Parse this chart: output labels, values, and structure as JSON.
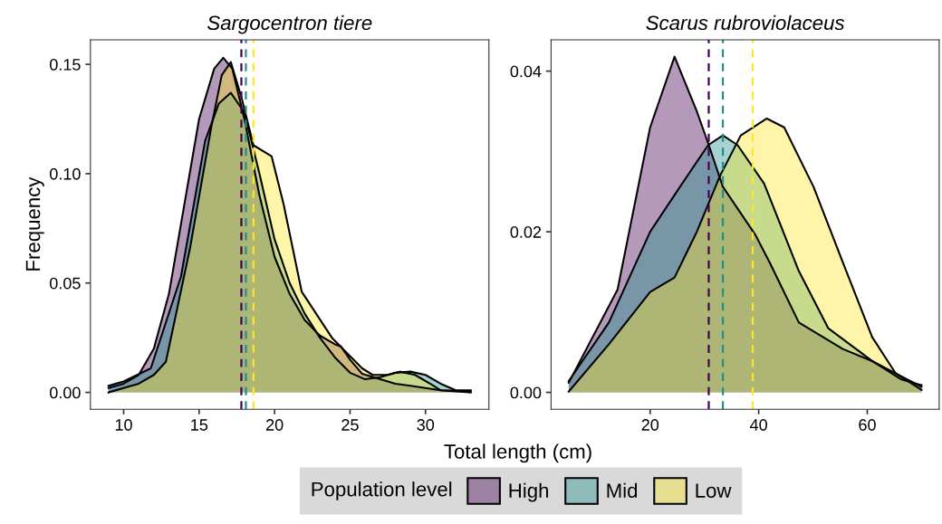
{
  "chart_data": [
    {
      "type": "area",
      "title": "Sargocentron tiere",
      "ylabel": "Frequency",
      "xlabel": "Total length (cm)",
      "legend_title": "Population level",
      "legend": "bottom",
      "grid": false,
      "xlim": [
        7.8,
        34.2
      ],
      "xticks": [
        10,
        15,
        20,
        25,
        30
      ],
      "ylim": [
        -0.0077,
        0.1612
      ],
      "yticks": [
        {
          "value": 0,
          "label": "0.00"
        },
        {
          "value": 0.05,
          "label": "0.05"
        },
        {
          "value": 0.1,
          "label": "0.10"
        },
        {
          "value": 0.15,
          "label": "0.15"
        }
      ],
      "series": [
        {
          "name": "High",
          "color": "#440154",
          "x": [
            9,
            10,
            11,
            12,
            13,
            14,
            15,
            16,
            16.6,
            17.2,
            18,
            19,
            20,
            21,
            22,
            23,
            24,
            24.4,
            25,
            25.8,
            27,
            28,
            29,
            30,
            31,
            33
          ],
          "values": [
            0.002,
            0.004,
            0.008,
            0.02,
            0.045,
            0.085,
            0.125,
            0.148,
            0.153,
            0.148,
            0.125,
            0.09,
            0.062,
            0.045,
            0.033,
            0.026,
            0.022,
            0.021,
            0.015,
            0.0085,
            0.006,
            0.004,
            0.003,
            0.002,
            0.001,
            0.0005
          ]
        },
        {
          "name": "Mid",
          "color": "#21908c",
          "x": [
            9,
            10,
            11.8,
            13.8,
            15.4,
            16.3,
            17.1,
            18,
            19,
            20,
            21,
            22,
            23,
            24,
            25,
            26,
            27,
            28,
            29,
            30,
            31,
            32,
            33
          ],
          "values": [
            0.003,
            0.005,
            0.011,
            0.053,
            0.115,
            0.132,
            0.137,
            0.128,
            0.1,
            0.07,
            0.05,
            0.036,
            0.025,
            0.016,
            0.009,
            0.006,
            0.007,
            0.009,
            0.0095,
            0.008,
            0.004,
            0.001,
            0.001
          ]
        },
        {
          "name": "Low",
          "color": "#fde725",
          "x": [
            9,
            10,
            11,
            12,
            12.8,
            14.4,
            15.8,
            16.5,
            17.1,
            17.8,
            18.6,
            19.8,
            20.6,
            21.8,
            23.8,
            25.8,
            26.5,
            27.5,
            28.3,
            29.3,
            30.3,
            31,
            33
          ],
          "values": [
            0.0,
            0.002,
            0.004,
            0.008,
            0.014,
            0.066,
            0.121,
            0.145,
            0.151,
            0.135,
            0.113,
            0.108,
            0.086,
            0.046,
            0.025,
            0.011,
            0.008,
            0.008,
            0.0095,
            0.008,
            0.004,
            0.001,
            0.0
          ]
        }
      ],
      "ref_lines": [
        {
          "axis": "x",
          "value": 17.8,
          "color": "#440154",
          "line_style": "dashed"
        },
        {
          "axis": "x",
          "value": 18.1,
          "color": "#21908c",
          "line_style": "dashed"
        },
        {
          "axis": "x",
          "value": 18.6,
          "color": "#fde725",
          "line_style": "dashed"
        }
      ]
    },
    {
      "type": "area",
      "title": "Scarus rubroviolaceus",
      "grid": false,
      "xlim": [
        1.75,
        73.25
      ],
      "xticks": [
        20,
        40,
        60
      ],
      "ylim": [
        -0.0021,
        0.0439
      ],
      "yticks": [
        {
          "value": 0,
          "label": "0.00"
        },
        {
          "value": 0.02,
          "label": "0.02"
        },
        {
          "value": 0.04,
          "label": "0.04"
        }
      ],
      "series": [
        {
          "color": "#440154",
          "x": [
            5,
            14,
            20,
            24.5,
            28.6,
            30.7,
            33.4,
            39.4,
            42,
            47.4,
            55.5,
            60.9,
            66.3,
            70
          ],
          "values": [
            0.0012,
            0.0128,
            0.033,
            0.0418,
            0.035,
            0.031,
            0.0256,
            0.0196,
            0.0162,
            0.0087,
            0.0054,
            0.0039,
            0.0016,
            0.0009
          ]
        },
        {
          "color": "#21908c",
          "x": [
            5,
            12.4,
            20,
            25.9,
            30.7,
            33.4,
            36.1,
            41,
            47.4,
            52.8,
            60.9,
            66.3,
            70
          ],
          "values": [
            0.0014,
            0.0087,
            0.02,
            0.026,
            0.0308,
            0.032,
            0.0308,
            0.026,
            0.0151,
            0.008,
            0.0039,
            0.002,
            0.0007
          ]
        },
        {
          "color": "#fde725",
          "x": [
            5,
            12.4,
            20,
            24.5,
            28.6,
            32.9,
            36.7,
            41.5,
            44.7,
            50.1,
            55.5,
            60.9,
            65.2,
            70
          ],
          "values": [
            0.0001,
            0.006,
            0.0125,
            0.0143,
            0.02,
            0.027,
            0.032,
            0.0341,
            0.033,
            0.0256,
            0.0162,
            0.0069,
            0.0024,
            0.0003
          ]
        }
      ],
      "ref_lines": [
        {
          "axis": "x",
          "value": 30.8,
          "color": "#440154",
          "line_style": "dashed"
        },
        {
          "axis": "x",
          "value": 33.4,
          "color": "#21908c",
          "line_style": "dashed"
        },
        {
          "axis": "x",
          "value": 38.9,
          "color": "#fde725",
          "line_style": "dashed"
        }
      ]
    }
  ]
}
